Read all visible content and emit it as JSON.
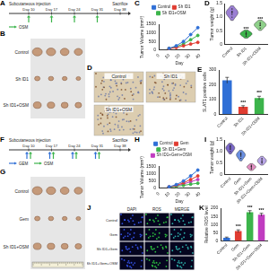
{
  "timelines": [
    {
      "panel": "A",
      "start": "Subcutaneous injection",
      "end": "Sacrifice",
      "days": [
        "Day 10",
        "Day 17",
        "Day 24",
        "Day 31",
        "Day 38"
      ],
      "treatments": [
        {
          "name": "OSM",
          "color": "#3cb44b",
          "at": [
            "Day 10",
            "Day 17",
            "Day 24",
            "Day 31"
          ]
        }
      ]
    },
    {
      "panel": "F",
      "start": "Subcutaneous injection",
      "end": "Sacrifice",
      "days": [
        "Day 10",
        "Day 17",
        "Day 24",
        "Day 31",
        "Day 38"
      ],
      "treatments": [
        {
          "name": "GEM",
          "color": "#2f6fd6",
          "at": [
            "Day 10",
            "Day 17",
            "Day 24",
            "Day 31"
          ]
        },
        {
          "name": "OSM",
          "color": "#3cb44b",
          "at": [
            "Day 10",
            "Day 17",
            "Day 24",
            "Day 31"
          ]
        }
      ]
    }
  ],
  "photos": [
    {
      "panel": "B",
      "rows": [
        "Control",
        "Sh ID1",
        "Sh ID1+OSM"
      ]
    },
    {
      "panel": "G",
      "rows": [
        "Control",
        "Gem",
        "Sh ID1+OSM"
      ]
    }
  ],
  "images": [
    {
      "panel": "D",
      "labels": [
        "Control",
        "Sh ID1",
        "Sh ID1+OSM"
      ]
    },
    {
      "panel": "J",
      "columns": [
        "DAPI",
        "ROS",
        "MERGE"
      ],
      "rows": [
        "Control",
        "Gem",
        "Sh ID1+Gem",
        "Sh ID1+Gem+OSM"
      ]
    }
  ],
  "chart_data": [
    {
      "panel": "C",
      "type": "line",
      "x": [
        10,
        17,
        24,
        31,
        38
      ],
      "xlim": [
        0,
        40
      ],
      "xticks": [
        0,
        10,
        20,
        30,
        40
      ],
      "ylim": [
        0,
        1500
      ],
      "yticks": [
        0,
        500,
        1000,
        1500
      ],
      "x_label": "Day",
      "y_label": "Tumor Volume (mm³)",
      "legend": "top",
      "grid": false,
      "series": [
        {
          "name": "Control",
          "color": "#2f6fd6",
          "values": [
            100,
            250,
            500,
            900,
            1300
          ]
        },
        {
          "name": "Sh ID1",
          "color": "#e03c31",
          "values": [
            80,
            150,
            250,
            350,
            450
          ]
        },
        {
          "name": "Sh ID1+OSM",
          "color": "#3cb44b",
          "values": [
            90,
            200,
            350,
            600,
            850
          ]
        }
      ]
    },
    {
      "panel": "D",
      "type": "violin",
      "categories": [
        "Control",
        "Sh ID1",
        "Sh ID1+OSM"
      ],
      "values": [
        [
          1.0,
          1.1,
          1.15,
          1.2,
          1.2,
          1.3
        ],
        [
          0.3,
          0.35,
          0.4,
          0.4,
          0.45
        ],
        [
          0.6,
          0.7,
          0.7,
          0.75,
          0.8
        ]
      ],
      "colors": [
        "#9b7fd4",
        "#3cb44b",
        "#8fd18a"
      ],
      "ylim": [
        0,
        1.5
      ],
      "yticks": [
        0,
        0.5,
        {
          "value": 1,
          "label": "1.0"
        },
        1.5
      ],
      "y_label": "Tumor weight (g)",
      "annotations": [
        null,
        "***",
        "***"
      ],
      "grid": false
    },
    {
      "panel": "E",
      "type": "bar",
      "categories": [
        "Control",
        "Sh ID1",
        "Sh ID1+OSM"
      ],
      "values": [
        230,
        50,
        110
      ],
      "errors": [
        20,
        8,
        12
      ],
      "colors": [
        "#2f6fd6",
        "#e03c31",
        "#3cb44b"
      ],
      "ylim": [
        0,
        300
      ],
      "yticks": [
        0,
        100,
        200,
        300
      ],
      "y_label": "SLAT1 positive cells",
      "annotations": [
        null,
        "***",
        "***"
      ],
      "grid": false
    },
    {
      "panel": "H",
      "type": "line",
      "x": [
        10,
        17,
        24,
        31,
        38
      ],
      "xlim": [
        0,
        40
      ],
      "xticks": [
        0,
        10,
        20,
        30,
        40
      ],
      "ylim": [
        0,
        1500
      ],
      "yticks": [
        0,
        500,
        1000,
        1500
      ],
      "x_label": "Day",
      "y_label": "Tumor Volume (mm³)",
      "legend": "top",
      "grid": false,
      "series": [
        {
          "name": "Control",
          "color": "#2f6fd6",
          "values": [
            100,
            250,
            500,
            850,
            1250
          ]
        },
        {
          "name": "Gem",
          "color": "#e03c31",
          "values": [
            90,
            200,
            380,
            600,
            850
          ]
        },
        {
          "name": "Sh ID1+Gem",
          "color": "#3cb44b",
          "values": [
            80,
            130,
            200,
            280,
            350
          ]
        },
        {
          "name": "Sh ID1+Gem+OSM",
          "color": "#c03cc0",
          "values": [
            85,
            170,
            300,
            450,
            600
          ]
        }
      ]
    },
    {
      "panel": "I",
      "type": "violin",
      "categories": [
        "Control",
        "Gem",
        "Sh ID1+Gem",
        "Sh ID1+Gem+OSM"
      ],
      "values": [
        [
          1.0,
          1.1,
          1.15,
          1.2,
          1.25
        ],
        [
          0.7,
          0.8,
          0.85,
          0.9,
          0.95
        ],
        [
          0.25,
          0.3,
          0.35,
          0.35,
          0.4
        ],
        [
          0.5,
          0.55,
          0.6,
          0.65,
          0.7
        ]
      ],
      "colors": [
        "#7b68c8",
        "#6a8fe0",
        "#e08fc0",
        "#b9a6e8"
      ],
      "ylim": [
        0,
        1.5
      ],
      "yticks": [
        0,
        0.5,
        {
          "value": 1,
          "label": "1.0"
        },
        1.5
      ],
      "y_label": "Tumor weight (g)",
      "grid": false
    },
    {
      "panel": "K",
      "type": "bar",
      "categories": [
        "Control",
        "Gem",
        "Sh ID1+Gem",
        "Sh ID1+Gem+OSM"
      ],
      "values": [
        20,
        60,
        175,
        160
      ],
      "errors": [
        4,
        8,
        10,
        9
      ],
      "colors": [
        "#2f6fd6",
        "#e03c31",
        "#3cb44b",
        "#c03cc0"
      ],
      "ylim": [
        0,
        200
      ],
      "yticks": [
        0,
        50,
        100,
        150,
        200
      ],
      "y_label": "Relative ROS level",
      "annotations": [
        null,
        "***",
        "***",
        "***"
      ],
      "grid": false
    }
  ]
}
